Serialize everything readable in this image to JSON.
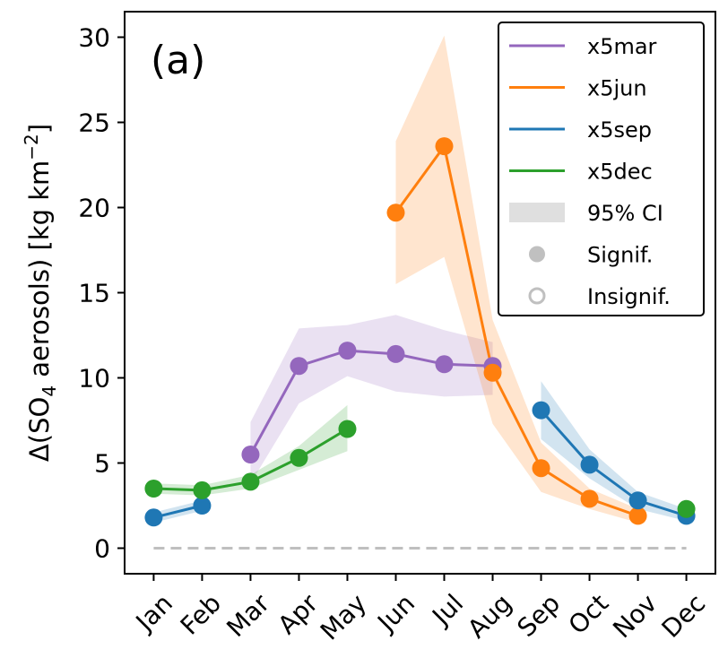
{
  "chart_data": {
    "type": "line",
    "panel_label": "(a)",
    "ylabel": {
      "prefix": "Δ(SO",
      "sub": "4",
      "middle": " aerosols) [kg km",
      "sup": "−2",
      "suffix": "]"
    },
    "categories": [
      "Jan",
      "Feb",
      "Mar",
      "Apr",
      "May",
      "Jun",
      "Jul",
      "Aug",
      "Sep",
      "Oct",
      "Nov",
      "Dec"
    ],
    "ylim": [
      -1.5,
      31.5
    ],
    "yticks": [
      0,
      5,
      10,
      15,
      20,
      25,
      30
    ],
    "ytick_labels": [
      "0",
      "5",
      "10",
      "15",
      "20",
      "25",
      "30"
    ],
    "baseline": 0,
    "series": [
      {
        "name": "x5mar",
        "color": "#9467bd",
        "x": [
          2,
          3,
          4,
          5,
          6,
          7
        ],
        "values": [
          5.5,
          10.7,
          11.6,
          11.4,
          10.8,
          10.7
        ],
        "ci_low": [
          3.8,
          8.5,
          10.1,
          9.2,
          8.9,
          9.0
        ],
        "ci_high": [
          7.4,
          12.9,
          13.1,
          13.7,
          12.8,
          12.1
        ],
        "signif": [
          true,
          true,
          true,
          true,
          true,
          true
        ]
      },
      {
        "name": "x5jun",
        "color": "#ff7f0e",
        "x": [
          5,
          6,
          7,
          8,
          9,
          10
        ],
        "values": [
          19.7,
          23.6,
          10.3,
          4.7,
          2.9,
          1.9
        ],
        "ci_low": [
          15.5,
          17.1,
          7.3,
          3.3,
          2.3,
          1.5
        ],
        "ci_high": [
          23.9,
          30.1,
          13.4,
          6.2,
          3.5,
          2.3
        ],
        "signif": [
          true,
          true,
          true,
          true,
          true,
          true
        ]
      },
      {
        "name": "x5sep",
        "color": "#1f77b4",
        "x": [
          8,
          9,
          10,
          11,
          0,
          1
        ],
        "values": [
          8.1,
          4.9,
          2.8,
          1.9,
          1.8,
          2.5
        ],
        "ci_low": [
          6.4,
          4.1,
          2.3,
          1.6,
          1.5,
          2.2
        ],
        "ci_high": [
          9.8,
          5.8,
          3.3,
          2.3,
          2.1,
          2.8
        ],
        "signif": [
          true,
          true,
          true,
          true,
          true,
          true
        ]
      },
      {
        "name": "x5dec",
        "color": "#2ca02c",
        "x": [
          11,
          0,
          1,
          2,
          3,
          4
        ],
        "values": [
          2.3,
          3.5,
          3.4,
          3.9,
          5.3,
          7.0
        ],
        "ci_low": [
          2.0,
          3.2,
          3.1,
          3.5,
          4.6,
          5.7
        ],
        "ci_high": [
          2.6,
          3.8,
          3.7,
          4.3,
          6.0,
          8.4
        ],
        "signif": [
          true,
          true,
          true,
          true,
          true,
          true
        ]
      }
    ],
    "legend": {
      "placement": "top-right",
      "ci_label": "95% CI",
      "signif_label": "Signif.",
      "insignif_label": "Insignif."
    },
    "grid": false
  }
}
